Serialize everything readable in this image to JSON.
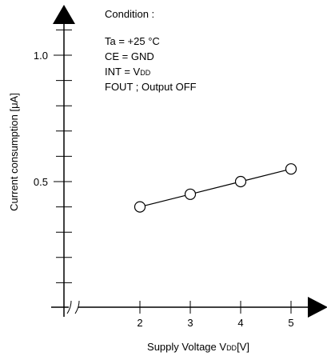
{
  "chart_data": {
    "type": "line",
    "x": [
      2,
      3,
      4,
      5
    ],
    "values": [
      0.4,
      0.45,
      0.5,
      0.55
    ],
    "xlim": [
      1.5,
      5.5
    ],
    "ylim": [
      0,
      1.2
    ],
    "xticks": [
      "2",
      "3",
      "4",
      "5"
    ],
    "yticks": [
      "0.5",
      "1.0"
    ],
    "xlabel": "Supply Voltage V",
    "xlabel_sub": "DD",
    "xlabel_unit": "[V]",
    "ylabel": "Current consumption [μA]",
    "axis_break": true,
    "grid": false,
    "marker": "open-circle",
    "line_color": "#000000",
    "conditions": {
      "title": "Condition :",
      "lines": [
        "Ta = +25 °C",
        "CE = GND",
        "INT = V",
        "FOUT ; Output OFF"
      ],
      "int_sub": "DD"
    }
  }
}
